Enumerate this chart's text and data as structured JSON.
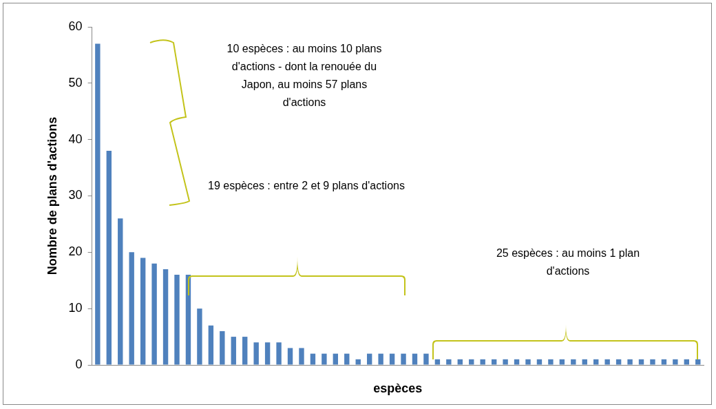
{
  "chart_data": {
    "type": "bar",
    "xlabel": "espèces",
    "ylabel": "Nombre de plans d'actions",
    "categories": [
      null,
      null,
      null,
      null,
      null,
      null,
      null,
      null,
      null,
      null,
      null,
      null,
      null,
      null,
      null,
      null,
      null,
      null,
      null,
      null,
      null,
      null,
      null,
      null,
      null,
      null,
      null,
      null,
      null,
      null,
      null,
      null,
      null,
      null,
      null,
      null,
      null,
      null,
      null,
      null,
      null,
      null,
      null,
      null,
      null,
      null,
      null,
      null,
      null,
      null,
      null,
      null,
      null,
      null
    ],
    "values": [
      57,
      38,
      26,
      20,
      19,
      18,
      17,
      16,
      16,
      10,
      7,
      6,
      5,
      5,
      4,
      4,
      4,
      3,
      3,
      2,
      2,
      2,
      2,
      1,
      2,
      2,
      2,
      2,
      2,
      2,
      1,
      1,
      1,
      1,
      1,
      1,
      1,
      1,
      1,
      1,
      1,
      1,
      1,
      1,
      1,
      1,
      1,
      1,
      1,
      1,
      1,
      1,
      1,
      1
    ],
    "color": "#4f81bd",
    "ylim": [
      0,
      60
    ],
    "yticks": [
      0,
      10,
      20,
      30,
      40,
      50,
      60
    ],
    "grid": false,
    "legend": false,
    "annotations": [
      "10 espèces : au moins 10 plans d'actions - dont la renouée du Japon, au moins 57 plans d'actions",
      "19 espèces : entre 2 et 9 plans d'actions",
      "25 espèces  : au moins 1 plan d'actions"
    ]
  }
}
